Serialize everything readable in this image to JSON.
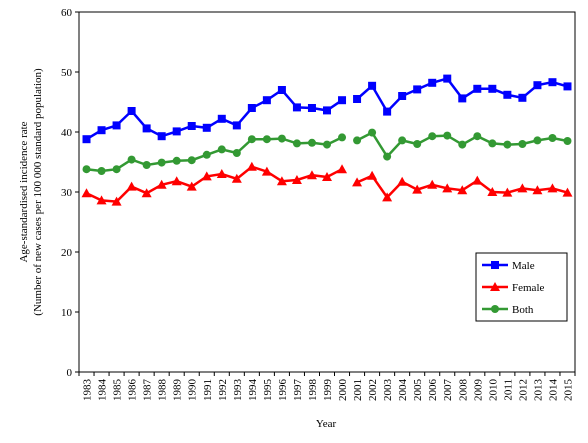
{
  "chart_data": {
    "type": "line",
    "title": "",
    "xlabel": "Year",
    "ylabel": "Age-standardised incidence rate",
    "ylabel_sub": "(Number of new cases per 100 000 standard population)",
    "ylim": [
      0,
      60
    ],
    "yticks": [
      0,
      10,
      20,
      30,
      40,
      50,
      60
    ],
    "grid": false,
    "legend_position": "bottom-right",
    "categories": [
      "1983",
      "1984",
      "1985",
      "1986",
      "1987",
      "1988",
      "1989",
      "1990",
      "1991",
      "1992",
      "1993",
      "1994",
      "1995",
      "1996",
      "1997",
      "1998",
      "1999",
      "2000",
      "2001",
      "2002",
      "2003",
      "2004",
      "2005",
      "2006",
      "2007",
      "2008",
      "2009",
      "2010",
      "2011",
      "2012",
      "2013",
      "2014",
      "2015"
    ],
    "series": [
      {
        "name": "Male",
        "color": "#0000ff",
        "marker": "square",
        "values": [
          38.8,
          40.3,
          41.1,
          43.5,
          40.6,
          39.3,
          40.1,
          41.0,
          40.7,
          42.2,
          41.1,
          44.0,
          45.3,
          47.0,
          44.1,
          44.0,
          43.6,
          45.3,
          45.5,
          47.7,
          43.4,
          46.0,
          47.1,
          48.2,
          48.9,
          45.6,
          47.2,
          47.2,
          46.2,
          45.7,
          47.8,
          48.3,
          47.6
        ],
        "break_before_index": 18
      },
      {
        "name": "Female",
        "color": "#ff0000",
        "marker": "triangle",
        "values": [
          29.8,
          28.6,
          28.4,
          30.9,
          29.8,
          31.2,
          31.8,
          30.9,
          32.6,
          33.0,
          32.2,
          34.2,
          33.4,
          31.8,
          32.0,
          32.8,
          32.5,
          33.8,
          31.6,
          32.7,
          29.1,
          31.7,
          30.4,
          31.2,
          30.6,
          30.3,
          31.9,
          30.0,
          29.9,
          30.6,
          30.3,
          30.6,
          29.9
        ],
        "break_before_index": 18
      },
      {
        "name": "Both",
        "color": "#339933",
        "marker": "circle",
        "values": [
          33.8,
          33.5,
          33.8,
          35.4,
          34.5,
          34.9,
          35.2,
          35.3,
          36.2,
          37.1,
          36.5,
          38.8,
          38.8,
          38.9,
          38.1,
          38.2,
          37.9,
          39.1,
          38.6,
          39.9,
          35.9,
          38.6,
          38.0,
          39.3,
          39.4,
          37.9,
          39.3,
          38.1,
          37.9,
          38.0,
          38.6,
          39.0,
          38.5
        ],
        "break_before_index": 18
      }
    ]
  }
}
